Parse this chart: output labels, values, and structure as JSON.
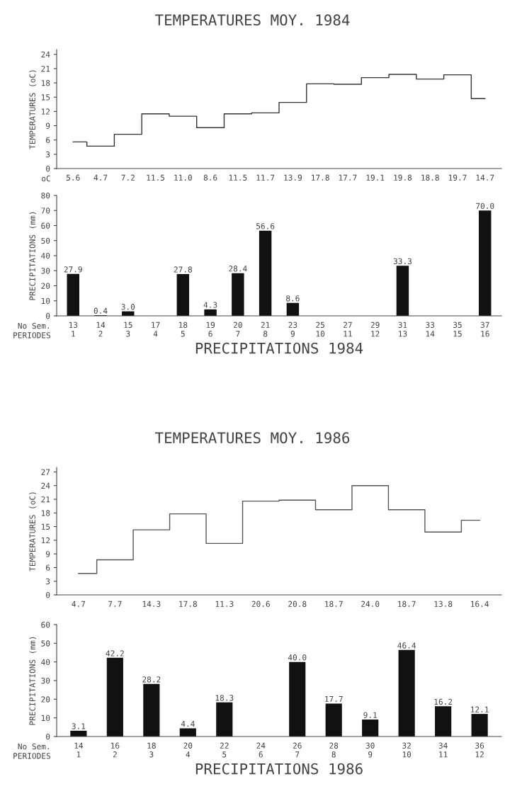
{
  "chart_data": [
    {
      "type": "step",
      "title": "TEMPERATURES MOY. 1984",
      "ylabel": "TEMPERATURES (oC)",
      "categories": [
        "5.6",
        "4.7",
        "7.2",
        "11.5",
        "11.0",
        "8.6",
        "11.5",
        "11.7",
        "13.9",
        "17.8",
        "17.7",
        "19.1",
        "19.8",
        "18.8",
        "19.7",
        "14.7"
      ],
      "values": [
        5.6,
        4.7,
        7.2,
        11.5,
        11.0,
        8.6,
        11.5,
        11.7,
        13.9,
        17.8,
        17.7,
        19.1,
        19.8,
        18.8,
        19.7,
        14.7
      ],
      "color": "#333333",
      "ylim": [
        0,
        25
      ],
      "yticks": [
        0,
        3,
        6,
        9,
        12,
        15,
        18,
        21,
        24
      ],
      "grid": false,
      "annotations": [
        "oC"
      ]
    },
    {
      "type": "bar",
      "xlabel": "PRECIPITATIONS 1984",
      "ylabel": "PRECIPITATIONS (mm)",
      "categories": [
        "13\n1",
        "14\n2",
        "15\n3",
        "17\n4",
        "18\n5",
        "19\n6",
        "20\n7",
        "21\n8",
        "23\n9",
        "25\n10",
        "27\n11",
        "29\n12",
        "31\n13",
        "33\n14",
        "35\n15",
        "37\n16"
      ],
      "values": [
        27.9,
        0.4,
        3.0,
        null,
        27.8,
        4.3,
        28.4,
        56.6,
        8.6,
        null,
        null,
        null,
        33.3,
        null,
        null,
        70.0
      ],
      "value_labels": [
        "27.9",
        "0.4",
        "3.0",
        null,
        "27.8",
        "4.3",
        "28.4",
        "56.6",
        "8.6",
        null,
        null,
        null,
        "33.3",
        null,
        null,
        "70.0"
      ],
      "color": "#111111",
      "ylim": [
        0,
        80
      ],
      "yticks": [
        0,
        10,
        20,
        30,
        40,
        50,
        60,
        70,
        80
      ],
      "grid": false,
      "annotations": [
        "No Sem.",
        "PERIODES"
      ]
    },
    {
      "type": "step",
      "title": "TEMPERATURES MOY. 1986",
      "ylabel": "TEMPERATURES (oC)",
      "categories": [
        "4.7",
        "7.7",
        "14.3",
        "17.8",
        "11.3",
        "20.6",
        "20.8",
        "18.7",
        "24.0",
        "18.7",
        "13.8",
        "16.4"
      ],
      "values": [
        4.7,
        7.7,
        14.3,
        17.8,
        11.3,
        20.6,
        20.8,
        18.7,
        24.0,
        18.7,
        13.8,
        16.4
      ],
      "color": "#555555",
      "ylim": [
        0,
        28
      ],
      "yticks": [
        0,
        3,
        6,
        9,
        12,
        15,
        18,
        21,
        24,
        27
      ],
      "grid": false
    },
    {
      "type": "bar",
      "xlabel": "PRECIPITATIONS 1986",
      "ylabel": "PRECIPITATIONS (mm)",
      "categories": [
        "14\n1",
        "16\n2",
        "18\n3",
        "20\n4",
        "22\n5",
        "24\n6",
        "26\n7",
        "28\n8",
        "30\n9",
        "32\n10",
        "34\n11",
        "36\n12"
      ],
      "values": [
        3.1,
        42.2,
        28.2,
        4.4,
        18.3,
        null,
        40.0,
        17.7,
        9.1,
        46.4,
        16.2,
        12.1
      ],
      "value_labels": [
        "3.1",
        "42.2",
        "28.2",
        "4.4",
        "18.3",
        null,
        "40.0",
        "17.7",
        "9.1",
        "46.4",
        "16.2",
        "12.1"
      ],
      "color": "#111111",
      "ylim": [
        0,
        60
      ],
      "yticks": [
        0,
        10,
        20,
        30,
        40,
        50,
        60
      ],
      "grid": false,
      "annotations": [
        "No Sem.",
        "PERIODES"
      ]
    }
  ]
}
